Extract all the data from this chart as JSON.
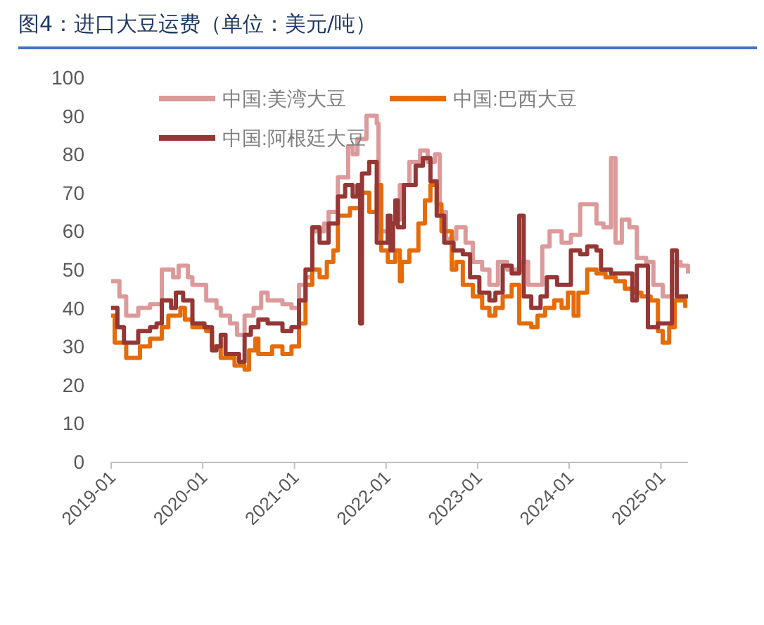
{
  "chart_data": {
    "type": "step",
    "title": "图4：进口大豆运费（单位：美元/吨）",
    "xlim": [
      "2019-01-01",
      "2025-04-19"
    ],
    "xticks": [
      "2019-01",
      "2020-01",
      "2021-01",
      "2022-01",
      "2023-01",
      "2024-01",
      "2025-01"
    ],
    "ylim": [
      0,
      100
    ],
    "yticks": [
      0,
      10,
      20,
      30,
      40,
      50,
      60,
      70,
      80,
      90,
      100
    ],
    "grid": false,
    "legend": "top",
    "line_style": "solid",
    "marker": "none",
    "series": [
      {
        "name": "中国:美湾大豆",
        "color": "#dc9a9a",
        "x": [
          "2019-01-01",
          "2019-02-03",
          "2019-03-02",
          "2019-04-19",
          "2019-06-05",
          "2019-07-22",
          "2019-09-05",
          "2019-09-27",
          "2019-11-03",
          "2019-11-21",
          "2020-01-15",
          "2020-02-25",
          "2020-03-13",
          "2020-04-19",
          "2020-05-17",
          "2020-06-16",
          "2020-07-22",
          "2020-08-21",
          "2020-09-16",
          "2020-11-14",
          "2020-12-20",
          "2021-01-19",
          "2021-02-14",
          "2021-03-13",
          "2021-04-29",
          "2021-05-17",
          "2021-06-23",
          "2021-08-03",
          "2021-08-21",
          "2021-09-09",
          "2021-10-15",
          "2021-11-25",
          "2021-12-02",
          "2022-01-08",
          "2022-01-19",
          "2022-02-07",
          "2022-02-25",
          "2022-04-04",
          "2022-05-17",
          "2022-06-16",
          "2022-07-15",
          "2022-08-03",
          "2022-08-28",
          "2022-10-08",
          "2022-11-14",
          "2022-12-13",
          "2023-01-19",
          "2023-02-17",
          "2023-03-23",
          "2023-04-29",
          "2023-06-23",
          "2023-07-22",
          "2023-09-16",
          "2023-10-15",
          "2023-12-02",
          "2024-01-08",
          "2024-02-14",
          "2024-03-13",
          "2024-04-19",
          "2024-05-17",
          "2024-06-16",
          "2024-07-04",
          "2024-07-29",
          "2024-08-28",
          "2024-09-27",
          "2024-11-03",
          "2024-12-02",
          "2025-01-08",
          "2025-02-14",
          "2025-03-20",
          "2025-04-19"
        ],
        "values": [
          47,
          43,
          38,
          40,
          41,
          50,
          48,
          51,
          48,
          46,
          42,
          40,
          38,
          36,
          33,
          38,
          40,
          44,
          42,
          41,
          40,
          46,
          48,
          60,
          62,
          65,
          74,
          82,
          80,
          84,
          90,
          88,
          60,
          57,
          62,
          63,
          72,
          78,
          81,
          78,
          80,
          65,
          58,
          61,
          57,
          52,
          50,
          46,
          52,
          50,
          52,
          46,
          56,
          60,
          57,
          59,
          67,
          67,
          62,
          61,
          79,
          57,
          63,
          61,
          53,
          52,
          46,
          43,
          52,
          51,
          49
        ]
      },
      {
        "name": "中国:巴西大豆",
        "color": "#e46c0a",
        "x": [
          "2019-01-01",
          "2019-01-15",
          "2019-03-02",
          "2019-03-20",
          "2019-04-26",
          "2019-06-05",
          "2019-07-22",
          "2019-08-17",
          "2019-10-04",
          "2019-10-22",
          "2019-11-21",
          "2020-01-15",
          "2020-02-07",
          "2020-03-13",
          "2020-05-07",
          "2020-06-16",
          "2020-07-04",
          "2020-07-29",
          "2020-08-10",
          "2020-10-04",
          "2020-11-14",
          "2020-12-20",
          "2021-01-19",
          "2021-02-14",
          "2021-03-13",
          "2021-04-11",
          "2021-05-10",
          "2021-06-05",
          "2021-06-23",
          "2021-08-10",
          "2021-09-27",
          "2021-10-26",
          "2021-11-25",
          "2021-12-13",
          "2022-01-08",
          "2022-02-07",
          "2022-02-25",
          "2022-03-05",
          "2022-04-04",
          "2022-05-10",
          "2022-06-05",
          "2022-06-27",
          "2022-07-22",
          "2022-08-10",
          "2022-09-20",
          "2022-10-08",
          "2022-11-03",
          "2022-12-13",
          "2023-01-19",
          "2023-02-17",
          "2023-03-13",
          "2023-04-11",
          "2023-05-17",
          "2023-06-16",
          "2023-08-03",
          "2023-08-28",
          "2023-09-27",
          "2023-11-03",
          "2023-12-02",
          "2023-12-27",
          "2024-01-19",
          "2024-02-07",
          "2024-03-13",
          "2024-04-19",
          "2024-05-25",
          "2024-07-04",
          "2024-08-10",
          "2024-09-16",
          "2024-10-15",
          "2024-11-21",
          "2024-12-20",
          "2025-01-08",
          "2025-02-03",
          "2025-02-25",
          "2025-04-08"
        ],
        "values": [
          38,
          31,
          27,
          27,
          30,
          32,
          35,
          38,
          40,
          37,
          35,
          34,
          30,
          27,
          25,
          24,
          29,
          32,
          28,
          30,
          28,
          30,
          36,
          46,
          50,
          48,
          52,
          55,
          64,
          66,
          70,
          65,
          72,
          55,
          52,
          55,
          47,
          52,
          55,
          62,
          68,
          72,
          67,
          60,
          50,
          52,
          46,
          43,
          40,
          38,
          40,
          43,
          46,
          36,
          35,
          38,
          40,
          42,
          40,
          44,
          38,
          44,
          50,
          49,
          48,
          47,
          45,
          44,
          43,
          42,
          34,
          31,
          35,
          42,
          40
        ]
      },
      {
        "name": "中国:阿根廷大豆",
        "color": "#953735",
        "x": [
          "2019-01-01",
          "2019-01-26",
          "2019-02-21",
          "2019-04-08",
          "2019-04-19",
          "2019-06-05",
          "2019-07-01",
          "2019-07-22",
          "2019-08-28",
          "2019-09-16",
          "2019-10-15",
          "2019-11-21",
          "2020-01-08",
          "2020-02-07",
          "2020-02-25",
          "2020-03-13",
          "2020-04-01",
          "2020-05-07",
          "2020-05-25",
          "2020-06-16",
          "2020-07-11",
          "2020-08-10",
          "2020-09-16",
          "2020-11-14",
          "2020-12-20",
          "2021-01-19",
          "2021-02-14",
          "2021-03-13",
          "2021-04-11",
          "2021-05-17",
          "2021-06-23",
          "2021-07-22",
          "2021-08-21",
          "2021-09-09",
          "2021-09-20",
          "2021-09-27",
          "2021-10-26",
          "2021-11-25",
          "2022-01-08",
          "2022-01-19",
          "2022-01-29",
          "2022-02-07",
          "2022-02-17",
          "2022-03-13",
          "2022-04-29",
          "2022-05-28",
          "2022-06-27",
          "2022-07-22",
          "2022-08-21",
          "2022-09-27",
          "2022-11-03",
          "2022-12-02",
          "2023-01-08",
          "2023-02-17",
          "2023-03-13",
          "2023-04-11",
          "2023-05-17",
          "2023-06-16",
          "2023-07-04",
          "2023-08-03",
          "2023-09-09",
          "2023-10-04",
          "2023-11-14",
          "2023-12-09",
          "2024-01-08",
          "2024-02-14",
          "2024-03-13",
          "2024-04-19",
          "2024-05-07",
          "2024-06-16",
          "2024-07-29",
          "2024-09-09",
          "2024-09-27",
          "2024-10-22",
          "2024-11-10",
          "2024-12-20",
          "2025-02-03",
          "2025-02-14",
          "2025-03-05",
          "2025-04-19"
        ],
        "values": [
          40,
          35,
          31,
          31,
          34,
          35,
          36,
          42,
          40,
          44,
          42,
          36,
          35,
          29,
          30,
          33,
          28,
          28,
          26,
          33,
          35,
          37,
          36,
          34,
          35,
          42,
          50,
          61,
          57,
          62,
          69,
          72,
          69,
          72,
          36,
          75,
          78,
          57,
          64,
          55,
          62,
          68,
          61,
          72,
          77,
          79,
          73,
          64,
          57,
          55,
          54,
          48,
          44,
          42,
          44,
          51,
          49,
          64,
          43,
          40,
          43,
          48,
          46,
          46,
          55,
          54,
          56,
          55,
          50,
          49,
          49,
          42,
          51,
          51,
          35,
          36,
          36,
          55,
          43,
          43
        ]
      }
    ]
  }
}
